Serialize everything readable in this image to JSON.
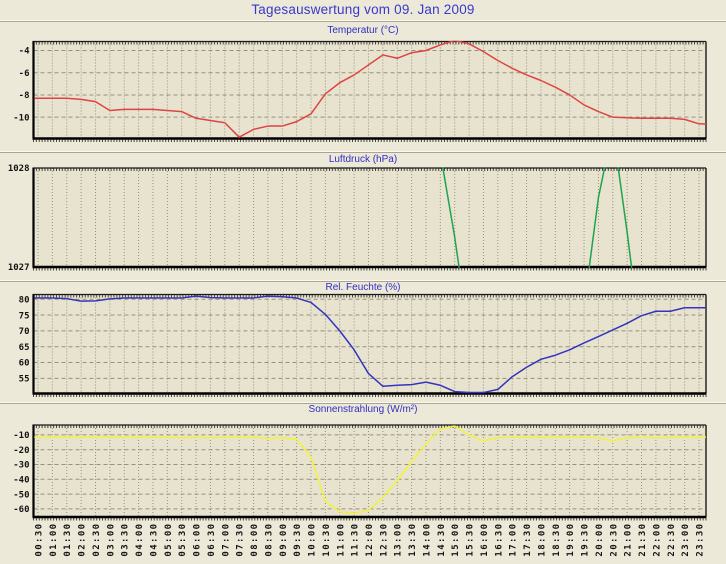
{
  "title": "Tagesauswertung vom 09. Jan 2009",
  "colors": {
    "background": "#ece9d8",
    "plot_background": "#e7e3cf",
    "grid": "#95917e",
    "frame": "#1a1a1a",
    "title_blue": "#2f2fc4",
    "tick_text": "#141414"
  },
  "x_labels": [
    "00:30",
    "01:00",
    "01:30",
    "02:00",
    "02:30",
    "03:00",
    "03:30",
    "04:00",
    "04:30",
    "05:00",
    "05:30",
    "06:00",
    "06:30",
    "07:00",
    "07:30",
    "08:00",
    "08:30",
    "09:00",
    "09:30",
    "10:00",
    "10:30",
    "11:00",
    "11:30",
    "12:00",
    "12:30",
    "13:00",
    "13:30",
    "14:00",
    "14:30",
    "15:00",
    "15:30",
    "16:00",
    "16:30",
    "17:00",
    "17:30",
    "18:00",
    "18:30",
    "19:00",
    "19:30",
    "20:00",
    "20:30",
    "21:00",
    "21:30",
    "22:00",
    "22:30",
    "23:00",
    "23:30"
  ],
  "chart_data": [
    {
      "type": "line",
      "title": "Temperatur (°C)",
      "color": "#e04343",
      "yticks": [
        -4,
        -6,
        -8,
        -10
      ],
      "ylim": [
        -11.92,
        -3.19
      ],
      "edge_ticks": false,
      "values": [
        -8.3,
        -8.3,
        -8.3,
        -8.4,
        -8.6,
        -9.4,
        -9.3,
        -9.3,
        -9.3,
        -9.4,
        -9.5,
        -10.1,
        -10.3,
        -10.5,
        -11.8,
        -11.1,
        -10.8,
        -10.8,
        -10.4,
        -9.7,
        -7.9,
        -6.9,
        -6.2,
        -5.3,
        -4.4,
        -4.7,
        -4.2,
        -4.0,
        -3.5,
        -3.1,
        -3.4,
        -4.1,
        -4.9,
        -5.6,
        -6.2,
        -6.7,
        -7.3,
        -8.0,
        -8.9,
        -9.5,
        -10.0,
        -10.05,
        -10.1,
        -10.1,
        -10.1,
        -10.2,
        -10.6
      ]
    },
    {
      "type": "line",
      "title": "Luftdruck (hPa)",
      "color": "#1ea34f",
      "yticks": [
        1028,
        1027
      ],
      "ylim": [
        1027,
        1028
      ],
      "edge_ticks": true,
      "note_values_outside_ylim_are_clipped": true,
      "values": [
        1028.4,
        1028.4,
        1028.4,
        1028.4,
        1028.4,
        1028.4,
        1028.4,
        1028.4,
        1028.4,
        1028.4,
        1028.4,
        1028.4,
        1028.4,
        1028.4,
        1028.4,
        1028.4,
        1028.4,
        1028.4,
        1028.4,
        1028.4,
        1028.4,
        1028.4,
        1028.4,
        1028.4,
        1028.4,
        1028.4,
        1028.4,
        1028.4,
        1028.15,
        1027.3,
        1026.3,
        1026.0,
        1026.0,
        1026.0,
        1026.0,
        1026.0,
        1026.0,
        1026.0,
        1026.6,
        1027.7,
        1028.4,
        1027.35,
        1026.2,
        1026.0,
        1026.0,
        1026.0,
        1026.0
      ]
    },
    {
      "type": "line",
      "title": "Rel. Feuchte (%)",
      "color": "#3434bd",
      "yticks": [
        80,
        75,
        70,
        65,
        60,
        55
      ],
      "ylim": [
        50.2,
        81.5
      ],
      "edge_ticks": false,
      "values": [
        80.4,
        80.4,
        80.2,
        79.4,
        79.5,
        80.1,
        80.4,
        80.4,
        80.4,
        80.4,
        80.4,
        81.0,
        80.5,
        80.4,
        80.4,
        80.4,
        81.0,
        80.8,
        80.4,
        79.0,
        75.2,
        70.0,
        64.0,
        56.5,
        52.5,
        52.8,
        53.0,
        53.8,
        52.8,
        50.8,
        50.5,
        50.5,
        51.5,
        55.5,
        58.5,
        61.0,
        62.3,
        64.0,
        66.2,
        68.2,
        70.3,
        72.4,
        74.8,
        76.2,
        76.2,
        77.3,
        77.3
      ]
    },
    {
      "type": "line",
      "title": "Sonnenstrahlung (W/m²)",
      "color": "#f2f23e",
      "yticks": [
        -10,
        -20,
        -30,
        -40,
        -50,
        -60
      ],
      "ylim": [
        -65.5,
        -3.3
      ],
      "edge_ticks": false,
      "values": [
        -11.5,
        -11.5,
        -11.5,
        -11.5,
        -11.5,
        -11.5,
        -11.5,
        -11.5,
        -11.5,
        -11.5,
        -12.0,
        -11.5,
        -12.0,
        -11.5,
        -11.5,
        -11.5,
        -12.5,
        -12.0,
        -13.0,
        -25.0,
        -55.0,
        -62.0,
        -63.0,
        -61.0,
        -52.0,
        -41.0,
        -28.0,
        -16.0,
        -6.0,
        -4.0,
        -10.0,
        -14.0,
        -12.0,
        -11.5,
        -11.5,
        -11.5,
        -11.5,
        -11.5,
        -11.5,
        -12.0,
        -14.0,
        -12.0,
        -11.5,
        -12.0,
        -11.5,
        -11.5,
        -11.5
      ]
    }
  ]
}
